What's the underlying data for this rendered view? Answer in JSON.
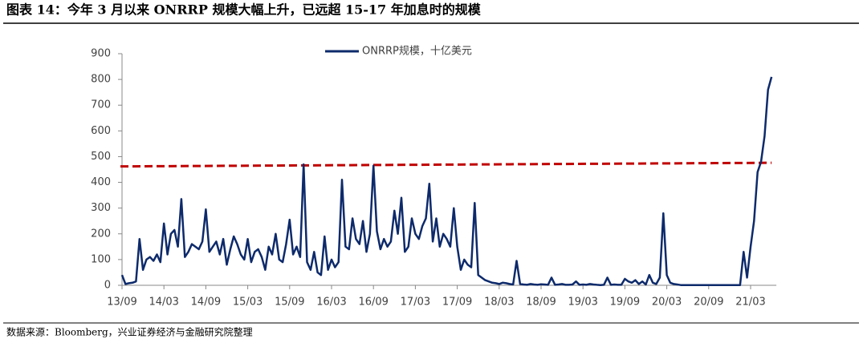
{
  "chart_data": {
    "type": "line",
    "title": "图表 14：今年 3 月以来 ONRRP 规模大幅上升，已远超 15-17 年加息时的规模",
    "source": "数据来源：Bloomberg，兴业证券经济与金融研究院整理",
    "categories": [
      "13/09",
      null,
      null,
      null,
      null,
      null,
      null,
      null,
      null,
      null,
      null,
      null,
      "14/03",
      null,
      null,
      null,
      null,
      null,
      null,
      null,
      null,
      null,
      null,
      null,
      "14/09",
      null,
      null,
      null,
      null,
      null,
      null,
      null,
      null,
      null,
      null,
      null,
      "15/03",
      null,
      null,
      null,
      null,
      null,
      null,
      null,
      null,
      null,
      null,
      null,
      "15/09",
      null,
      null,
      null,
      null,
      null,
      null,
      null,
      null,
      null,
      null,
      null,
      "16/03",
      null,
      null,
      null,
      null,
      null,
      null,
      null,
      null,
      null,
      null,
      null,
      "16/09",
      null,
      null,
      null,
      null,
      null,
      null,
      null,
      null,
      null,
      null,
      null,
      "17/03",
      null,
      null,
      null,
      null,
      null,
      null,
      null,
      null,
      null,
      null,
      null,
      "17/09",
      null,
      null,
      null,
      null,
      null,
      null,
      null,
      null,
      null,
      null,
      null,
      "18/03",
      null,
      null,
      null,
      null,
      null,
      null,
      null,
      null,
      null,
      null,
      null,
      "18/09",
      null,
      null,
      null,
      null,
      null,
      null,
      null,
      null,
      null,
      null,
      null,
      "19/03",
      null,
      null,
      null,
      null,
      null,
      null,
      null,
      null,
      null,
      null,
      null,
      "19/09",
      null,
      null,
      null,
      null,
      null,
      null,
      null,
      null,
      null,
      null,
      null,
      "20/03",
      null,
      null,
      null,
      null,
      null,
      null,
      null,
      null,
      null,
      null,
      null,
      "20/09",
      null,
      null,
      null,
      null,
      null,
      null,
      null,
      null,
      null,
      null,
      null,
      "21/03",
      null,
      null,
      null,
      null,
      null,
      null
    ],
    "series": [
      {
        "name": "ONRRP规模，十亿美元",
        "color": "#0d2a6b",
        "values": [
          40,
          5,
          8,
          10,
          15,
          180,
          60,
          100,
          110,
          95,
          120,
          90,
          240,
          120,
          200,
          215,
          150,
          335,
          110,
          130,
          160,
          150,
          140,
          170,
          295,
          130,
          150,
          170,
          120,
          180,
          80,
          140,
          190,
          160,
          120,
          100,
          180,
          90,
          130,
          140,
          110,
          60,
          150,
          120,
          200,
          100,
          90,
          160,
          255,
          120,
          150,
          110,
          470,
          90,
          60,
          130,
          50,
          40,
          190,
          60,
          100,
          70,
          90,
          410,
          150,
          140,
          260,
          180,
          160,
          250,
          130,
          200,
          465,
          210,
          140,
          180,
          150,
          170,
          290,
          200,
          340,
          130,
          150,
          260,
          200,
          180,
          230,
          260,
          395,
          170,
          260,
          150,
          200,
          180,
          150,
          300,
          150,
          60,
          100,
          80,
          70,
          320,
          40,
          30,
          20,
          15,
          10,
          8,
          5,
          10,
          8,
          5,
          3,
          95,
          5,
          3,
          2,
          5,
          3,
          2,
          4,
          3,
          2,
          30,
          2,
          3,
          5,
          2,
          2,
          3,
          15,
          2,
          3,
          2,
          5,
          3,
          2,
          1,
          2,
          30,
          2,
          3,
          2,
          2,
          25,
          15,
          10,
          20,
          5,
          15,
          3,
          40,
          10,
          5,
          30,
          280,
          40,
          10,
          5,
          3,
          1,
          1,
          1,
          1,
          1,
          1,
          1,
          1,
          1,
          1,
          1,
          1,
          1,
          1,
          1,
          1,
          1,
          1,
          130,
          30,
          150,
          250,
          440,
          480,
          580,
          760,
          810
        ]
      }
    ],
    "reference_line": {
      "values": [
        462,
        476
      ],
      "color": "#c00000"
    },
    "ylim": [
      0,
      900
    ],
    "yticks": [
      0,
      100,
      200,
      300,
      400,
      500,
      600,
      700,
      800,
      900
    ],
    "legend": "top"
  }
}
